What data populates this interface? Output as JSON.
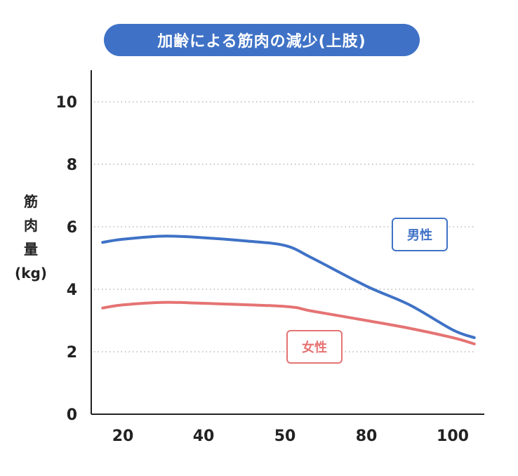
{
  "title": "加齢による筋肉の減少(上肢)",
  "colors": {
    "title_bg": "#3F72C6",
    "male": "#3F72C6",
    "female": "#E57373",
    "axis": "#222222",
    "grid": "#B5B5B5",
    "text": "#222222"
  },
  "ylabel_lines": [
    "筋",
    "肉",
    "量",
    "(kg)"
  ],
  "chart_data": {
    "type": "line",
    "title": "加齢による筋肉の減少(上肢)",
    "xlabel": "",
    "ylabel": "筋肉量(kg)",
    "categories": [
      "20",
      "40",
      "50",
      "80",
      "100"
    ],
    "y_ticks": [
      "0",
      "2",
      "4",
      "6",
      "8",
      "10"
    ],
    "ylim": [
      0,
      11
    ],
    "grid": "horizontal dotted",
    "series": [
      {
        "name": "男性",
        "color": "#3F72C6",
        "x": [
          15,
          20,
          30,
          40,
          45,
          50,
          60,
          80,
          90,
          100,
          105
        ],
        "y": [
          5.5,
          5.6,
          5.7,
          5.65,
          5.55,
          5.4,
          5.0,
          4.1,
          3.5,
          2.7,
          2.45
        ]
      },
      {
        "name": "女性",
        "color": "#E57373",
        "x": [
          15,
          20,
          30,
          40,
          50,
          60,
          80,
          90,
          100,
          105
        ],
        "y": [
          3.4,
          3.5,
          3.58,
          3.55,
          3.45,
          3.3,
          3.0,
          2.75,
          2.45,
          2.25
        ]
      }
    ]
  },
  "legend": {
    "male_label": "男性",
    "female_label": "女性"
  }
}
